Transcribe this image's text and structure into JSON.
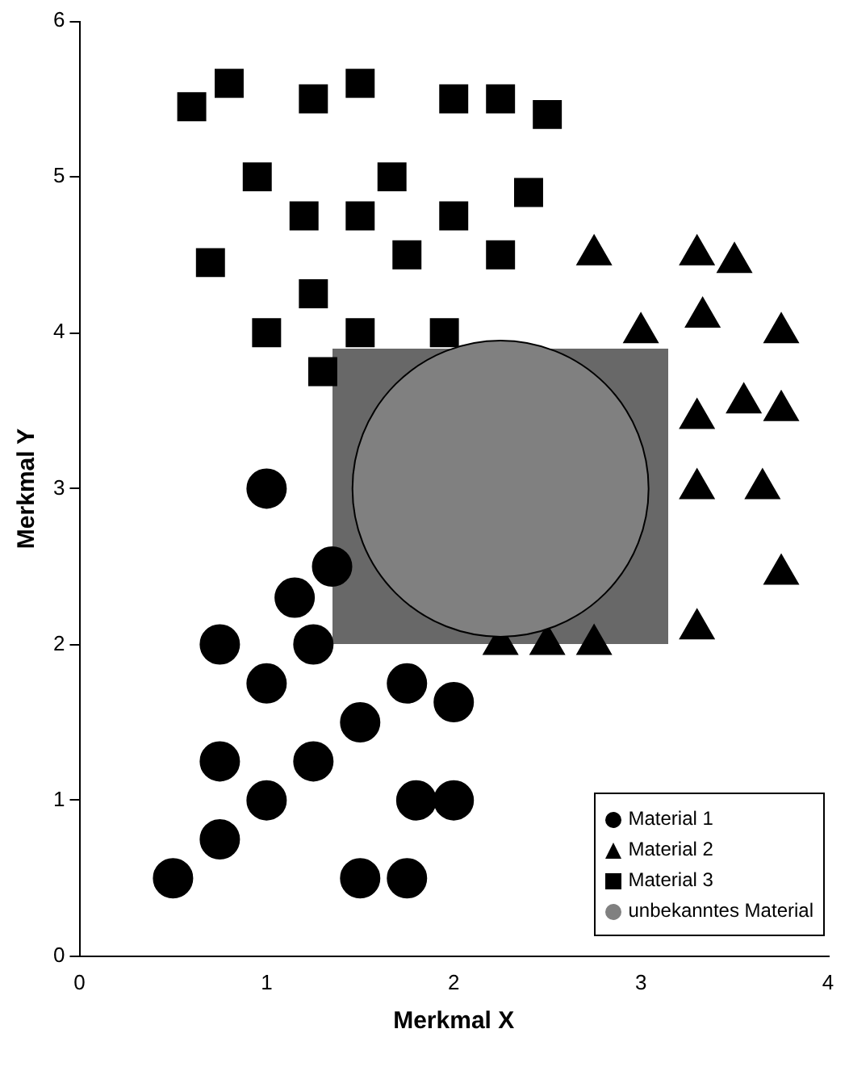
{
  "chart_data": {
    "type": "scatter",
    "xlabel": "Merkmal X",
    "ylabel": "Merkmal Y",
    "xlim": [
      0,
      4
    ],
    "ylim": [
      0,
      6
    ],
    "xticks": [
      0,
      1,
      2,
      3,
      4
    ],
    "yticks": [
      0,
      1,
      2,
      3,
      4,
      5,
      6
    ],
    "grid": false,
    "legend": "bottom right",
    "series": [
      {
        "name": "Material 1",
        "color": "#000000",
        "marker": "circle",
        "x": [
          0.5,
          0.75,
          1,
          0.75,
          1.25,
          1.5,
          1,
          1.75,
          2,
          1.8,
          2,
          1.5,
          1.75,
          1,
          1.15,
          0.75,
          1.25,
          1.35
        ],
        "values": [
          0.5,
          0.75,
          1,
          1.25,
          1.25,
          1.5,
          1.75,
          1.75,
          1.63,
          1,
          1,
          0.5,
          0.5,
          3,
          2.3,
          2,
          2,
          2.5
        ]
      },
      {
        "name": "Material 2",
        "color": "#000000",
        "marker": "triangle",
        "x": [
          2.75,
          3.3,
          3.5,
          3,
          3.33,
          3.75,
          3.3,
          3.55,
          3.75,
          3.3,
          3.65,
          3.75,
          3.3,
          2.25,
          2.5,
          2.75
        ],
        "values": [
          4.5,
          4.5,
          4.45,
          4,
          4.1,
          4,
          3.45,
          3.55,
          3.5,
          3,
          3,
          2.45,
          2.1,
          2,
          2,
          2
        ]
      },
      {
        "name": "Material 3",
        "color": "#000000",
        "marker": "square",
        "x": [
          0.6,
          0.8,
          1.25,
          1.5,
          2,
          2.25,
          2.5,
          0.95,
          1.67,
          2.4,
          1.2,
          1.5,
          2,
          0.7,
          1.75,
          2.25,
          1.25,
          1,
          1.5,
          1.95,
          1.3
        ],
        "values": [
          5.45,
          5.6,
          5.5,
          5.6,
          5.5,
          5.5,
          5.4,
          5,
          5,
          4.9,
          4.75,
          4.75,
          4.75,
          4.45,
          4.5,
          4.5,
          4.25,
          4,
          4,
          4,
          3.75
        ]
      },
      {
        "name": "unbekanntes Material",
        "color": "#808080",
        "marker": "circle",
        "x": [
          2.25
        ],
        "values": [
          3
        ]
      }
    ]
  }
}
